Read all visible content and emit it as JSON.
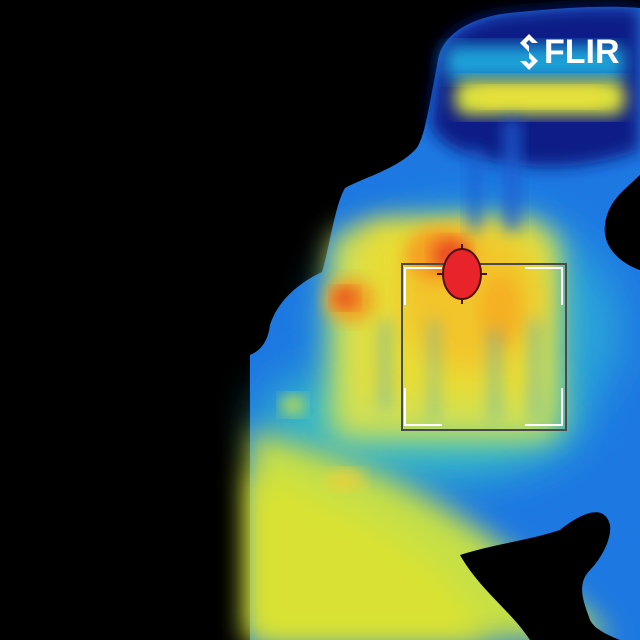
{
  "brand": {
    "logo_text": "FLIR",
    "logo_icon": "flir-diamond-icon"
  },
  "overlay": {
    "spot_marker": "spot-meter-crosshair-icon",
    "measure_box": "measurement-box-brackets",
    "highlight_color": "#e8232a",
    "box_border_color": "#4a4a4a",
    "bracket_color": "#ffffff"
  },
  "palette": [
    "#000000",
    "#06127a",
    "#1c6fe0",
    "#1aa0d8",
    "#33c3c8",
    "#b6e06a",
    "#d8e23a",
    "#f0d62a",
    "#f5a020",
    "#e8232a"
  ]
}
